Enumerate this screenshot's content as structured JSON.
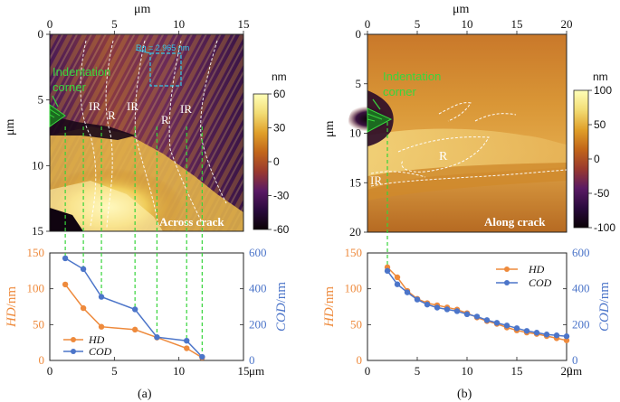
{
  "colors": {
    "hd": "#ee8a3c",
    "cod": "#4c75c9",
    "guide": "#36d43a",
    "annot": "#39d63d",
    "roi": "#35c7e6",
    "frame": "#222222"
  },
  "colorbar_stops": [
    "#0a0205",
    "#2a0a3d",
    "#5a1a64",
    "#9a3a2e",
    "#c2661a",
    "#e0a02a",
    "#f2dc74",
    "#ffffb8"
  ],
  "panel_a": {
    "caption": "(a)",
    "map": {
      "x_unit": "μm",
      "y_unit": "μm",
      "x_ticks": [
        "0",
        "5",
        "10",
        "15"
      ],
      "y_ticks": [
        "0",
        "5",
        "10",
        "15"
      ],
      "colorbar_unit": "nm",
      "colorbar_ticks": [
        "60",
        "30",
        "0",
        "-30",
        "-60"
      ],
      "label": "Across crack",
      "indentation_label_1": "Indentation",
      "indentation_label_2": "corner",
      "roi_text": "Rq = 2.965 nm",
      "region_labels": [
        "IR",
        "R",
        "IR",
        "R",
        "IR"
      ]
    },
    "chart_data": {
      "type": "line",
      "x_label": "μm",
      "xlim": [
        0,
        15
      ],
      "x_ticks": [
        "0",
        "5",
        "10",
        "15"
      ],
      "y_left": {
        "label": "HD/nm",
        "lim": [
          0,
          150
        ],
        "ticks": [
          "0",
          "50",
          "100",
          "150"
        ]
      },
      "y_right": {
        "label": "COD/nm",
        "lim": [
          0,
          600
        ],
        "ticks": [
          "0",
          "200",
          "400",
          "600"
        ]
      },
      "legend": [
        "HD",
        "COD"
      ],
      "legend_position": "bottom-left",
      "series": [
        {
          "name": "HD",
          "axis": "left",
          "x": [
            1.2,
            2.6,
            4.0,
            6.6,
            8.3,
            10.6,
            11.8
          ],
          "y": [
            106,
            73,
            47,
            43,
            32,
            17,
            4
          ]
        },
        {
          "name": "COD",
          "axis": "right",
          "x": [
            1.2,
            2.6,
            4.0,
            6.6,
            8.3,
            10.6,
            11.8
          ],
          "y": [
            570,
            510,
            355,
            285,
            130,
            110,
            20
          ]
        }
      ]
    }
  },
  "panel_b": {
    "caption": "(b)",
    "map": {
      "x_unit": "μm",
      "y_unit": "μm",
      "x_ticks": [
        "0",
        "5",
        "10",
        "15",
        "20"
      ],
      "y_ticks": [
        "0",
        "5",
        "10",
        "15",
        "20"
      ],
      "colorbar_unit": "nm",
      "colorbar_ticks": [
        "100",
        "50",
        "0",
        "-50",
        "-100"
      ],
      "label": "Along crack",
      "indentation_label_1": "Indentation",
      "indentation_label_2": "corner",
      "region_labels": [
        "R",
        "IR"
      ]
    },
    "chart_data": {
      "type": "line",
      "x_label": "μm",
      "xlim": [
        0,
        20
      ],
      "x_ticks": [
        "0",
        "5",
        "10",
        "15",
        "20"
      ],
      "y_left": {
        "label": "HD/nm",
        "lim": [
          0,
          150
        ],
        "ticks": [
          "0",
          "50",
          "100",
          "150"
        ]
      },
      "y_right": {
        "label": "COD/nm",
        "lim": [
          0,
          600
        ],
        "ticks": [
          "0",
          "200",
          "400",
          "600"
        ]
      },
      "legend": [
        "HD",
        "COD"
      ],
      "legend_position": "top-right",
      "series": [
        {
          "name": "HD",
          "axis": "left",
          "x": [
            2,
            3,
            4,
            5,
            6,
            7,
            8,
            9,
            10,
            11,
            12,
            13,
            14,
            15,
            16,
            17,
            18,
            19,
            20
          ],
          "y": [
            130,
            116,
            97,
            86,
            80,
            77,
            74,
            71,
            66,
            60,
            55,
            51,
            46,
            42,
            39,
            37,
            34,
            31,
            28
          ]
        },
        {
          "name": "COD",
          "axis": "right",
          "x": [
            2,
            3,
            4,
            5,
            6,
            7,
            8,
            9,
            10,
            11,
            12,
            13,
            14,
            15,
            16,
            17,
            18,
            19,
            20
          ],
          "y": [
            500,
            425,
            380,
            340,
            312,
            295,
            285,
            275,
            258,
            245,
            225,
            210,
            195,
            180,
            165,
            155,
            145,
            140,
            135
          ]
        }
      ]
    }
  }
}
